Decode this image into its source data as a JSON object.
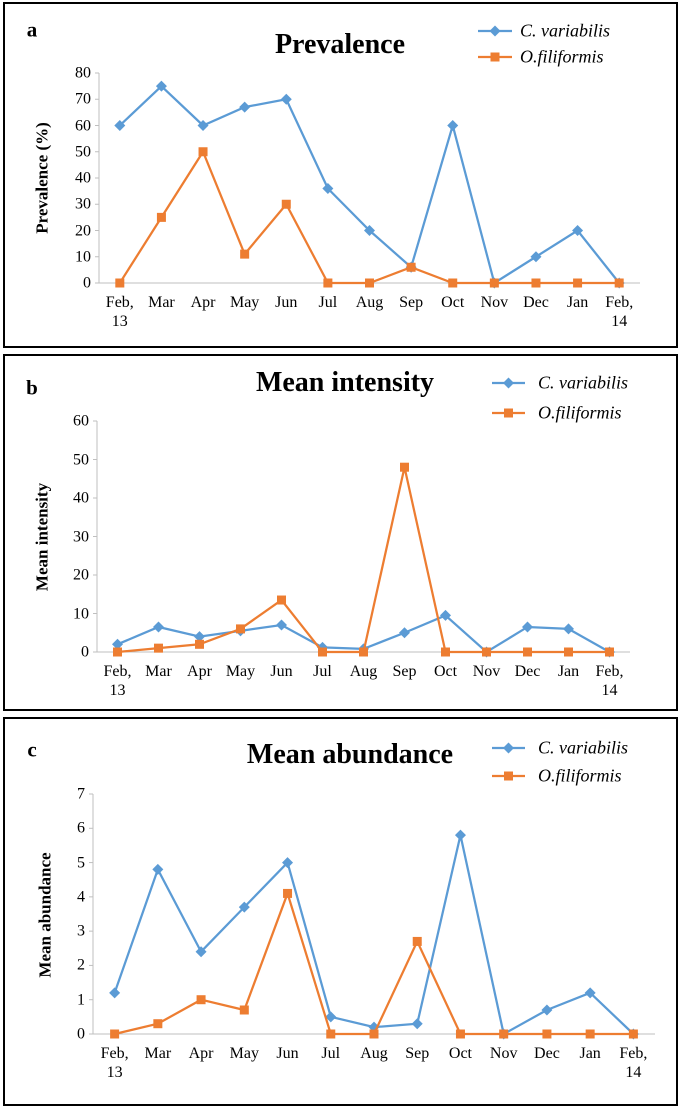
{
  "chart_data": [
    {
      "type": "line",
      "label": "a",
      "title": "Prevalence",
      "y_label": "Prevalence (%)",
      "categories": [
        "Feb, 13",
        "Mar",
        "Apr",
        "May",
        "Jun",
        "Jul",
        "Aug",
        "Sep",
        "Oct",
        "Nov",
        "Dec",
        "Jan",
        "Feb, 14"
      ],
      "series": [
        {
          "name": "C. variabilis",
          "color": "#5b9bd5",
          "marker": "diamond",
          "values": [
            60,
            75,
            60,
            67,
            70,
            36,
            20,
            6,
            60,
            0,
            10,
            20,
            0
          ]
        },
        {
          "name": "O.filiformis",
          "color": "#ed7d31",
          "marker": "square",
          "values": [
            0,
            25,
            50,
            11,
            30,
            0,
            0,
            6,
            0,
            0,
            0,
            0,
            0
          ]
        }
      ],
      "ylim": [
        0,
        80
      ],
      "yticks": [
        0,
        10,
        20,
        30,
        40,
        50,
        60,
        70,
        80
      ],
      "grid": false
    },
    {
      "type": "line",
      "label": "b",
      "title": "Mean intensity",
      "y_label": "Mean intensity",
      "categories": [
        "Feb, 13",
        "Mar",
        "Apr",
        "May",
        "Jun",
        "Jul",
        "Aug",
        "Sep",
        "Oct",
        "Nov",
        "Dec",
        "Jan",
        "Feb, 14"
      ],
      "series": [
        {
          "name": "C. variabilis",
          "color": "#5b9bd5",
          "marker": "diamond",
          "values": [
            2,
            6.5,
            4,
            5.5,
            7,
            1.2,
            0.8,
            5,
            9.5,
            0,
            6.5,
            6,
            0
          ]
        },
        {
          "name": "O.filiformis",
          "color": "#ed7d31",
          "marker": "square",
          "values": [
            0,
            1,
            2,
            6,
            13.5,
            0,
            0,
            48,
            0,
            0,
            0,
            0,
            0
          ]
        }
      ],
      "ylim": [
        0,
        60
      ],
      "yticks": [
        0,
        10,
        20,
        30,
        40,
        50,
        60
      ],
      "grid": false
    },
    {
      "type": "line",
      "label": "c",
      "title": "Mean abundance",
      "y_label": "Mean abundance",
      "categories": [
        "Feb, 13",
        "Mar",
        "Apr",
        "May",
        "Jun",
        "Jul",
        "Aug",
        "Sep",
        "Oct",
        "Nov",
        "Dec",
        "Jan",
        "Feb, 14"
      ],
      "series": [
        {
          "name": "C. variabilis",
          "color": "#5b9bd5",
          "marker": "diamond",
          "values": [
            1.2,
            4.8,
            2.4,
            3.7,
            5.0,
            0.5,
            0.2,
            0.3,
            5.8,
            0,
            0.7,
            1.2,
            0
          ]
        },
        {
          "name": "O.filiformis",
          "color": "#ed7d31",
          "marker": "square",
          "values": [
            0,
            0.3,
            1.0,
            0.7,
            4.1,
            0,
            0,
            2.7,
            0,
            0,
            0,
            0,
            0
          ]
        }
      ],
      "ylim": [
        0,
        7
      ],
      "yticks": [
        0,
        1,
        2,
        3,
        4,
        5,
        6,
        7
      ],
      "grid": false
    }
  ]
}
